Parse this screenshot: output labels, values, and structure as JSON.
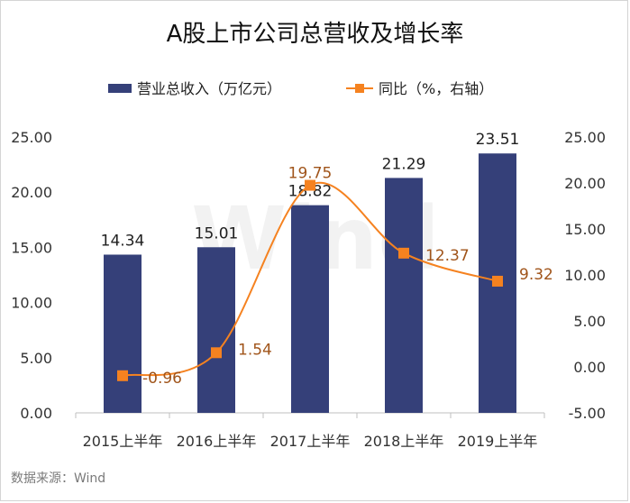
{
  "chart_data": {
    "type": "bar+line",
    "title": "A股上市公司总营收及增长率",
    "categories": [
      "2015上半年",
      "2016上半年",
      "2017上半年",
      "2018上半年",
      "2019上半年"
    ],
    "series": [
      {
        "name": "营业总收入（万亿元）",
        "type": "bar",
        "axis": "left",
        "values": [
          14.34,
          15.01,
          18.82,
          21.29,
          23.51
        ],
        "labels": [
          "14.34",
          "15.01",
          "18.82",
          "21.29",
          "23.51"
        ],
        "color": "#354079"
      },
      {
        "name": "同比（%，右轴）",
        "type": "line",
        "axis": "right",
        "values": [
          -0.96,
          1.54,
          19.75,
          12.37,
          9.32
        ],
        "labels": [
          "-0.96",
          "1.54",
          "19.75",
          "12.37",
          "9.32"
        ],
        "color": "#f58220",
        "label_color": "#a0541a",
        "smooth": true
      }
    ],
    "left_axis": {
      "ylim": [
        0,
        25
      ],
      "ticks": [
        "0.00",
        "5.00",
        "10.00",
        "15.00",
        "20.00",
        "25.00"
      ]
    },
    "right_axis": {
      "ylim": [
        -5,
        25
      ],
      "ticks": [
        "-5.00",
        "0.00",
        "5.00",
        "10.00",
        "15.00",
        "20.00",
        "25.00"
      ]
    },
    "legend_position": "top",
    "grid": false,
    "watermark": "Wind",
    "source": "数据来源：Wind"
  }
}
